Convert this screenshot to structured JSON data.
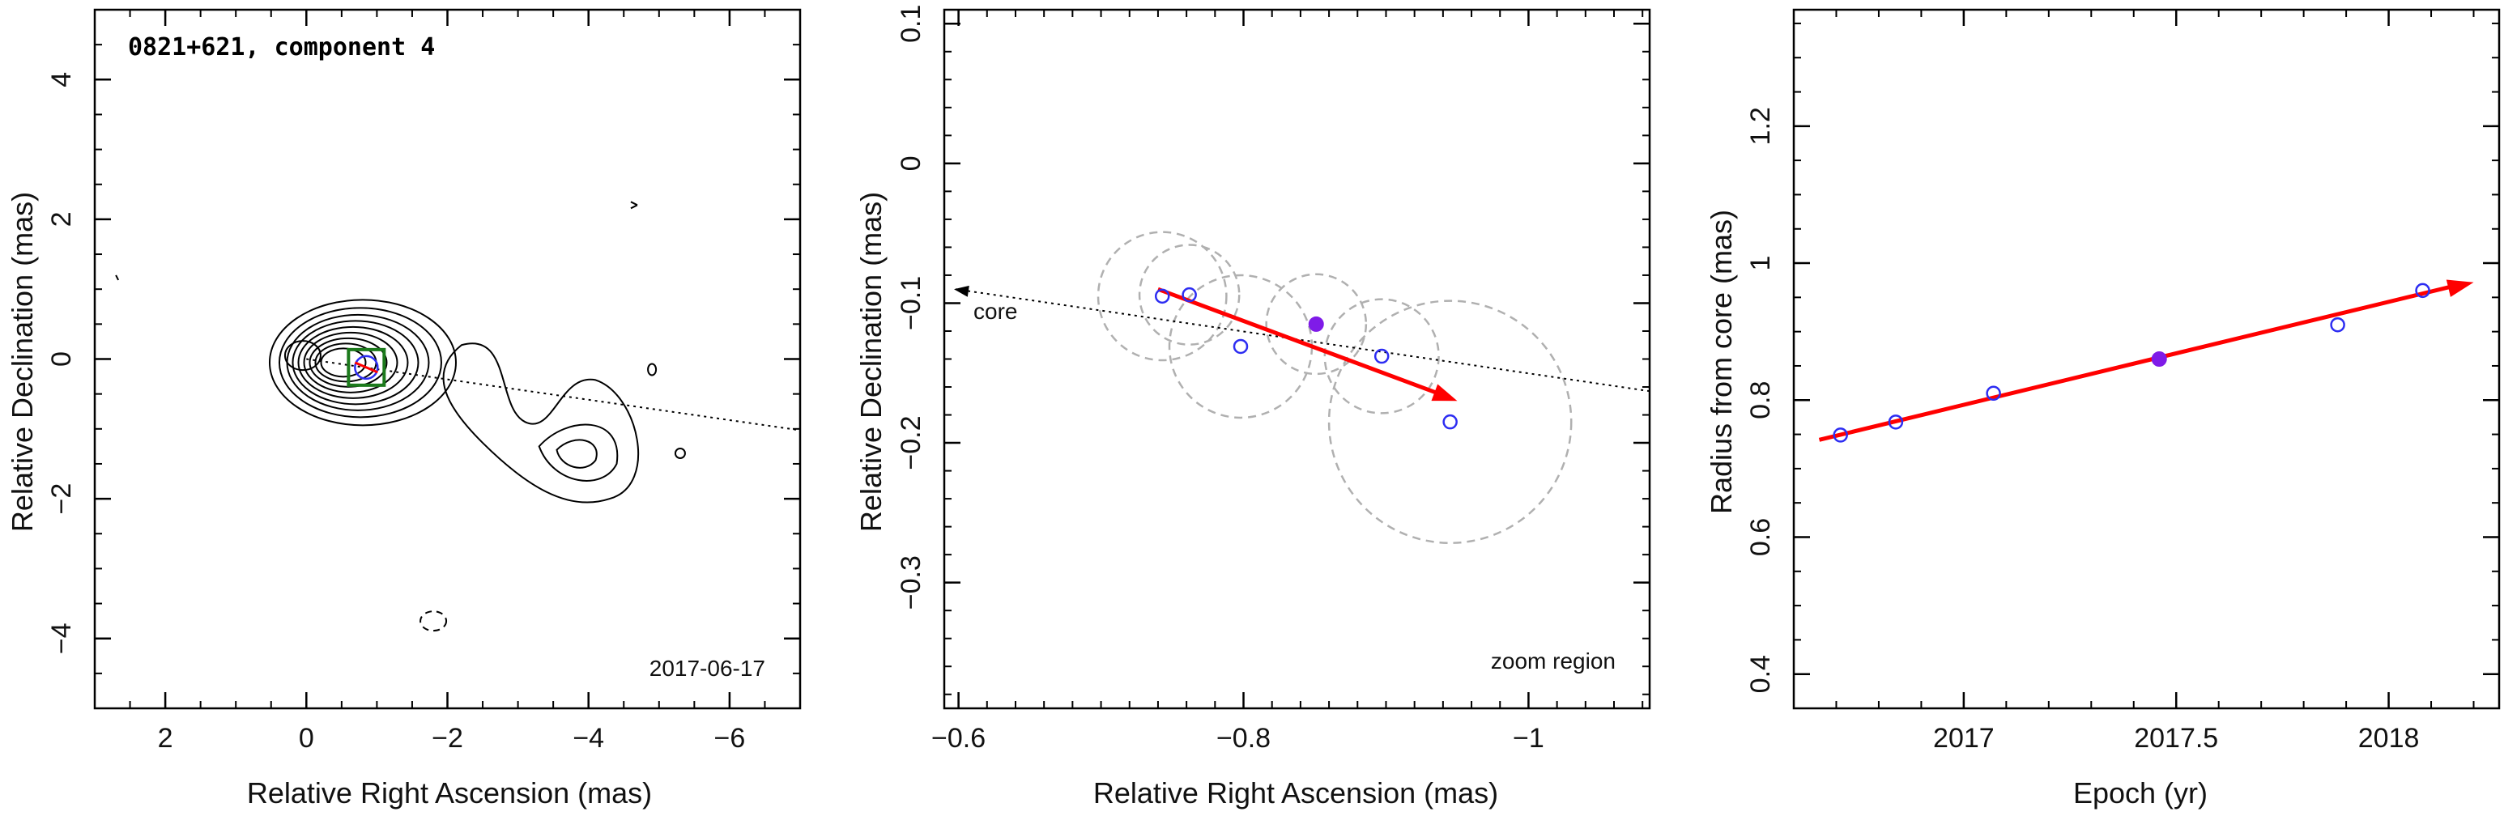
{
  "colors": {
    "axis": "#000000",
    "arrow": "#ff0000",
    "marker_open": "#2d2df2",
    "marker_filled": "#7f1be8",
    "circle": "#b0b0b0",
    "box": "#1c7a1c"
  },
  "chart_data": [
    {
      "type": "contour",
      "title": "0821+621, component 4",
      "date": "2017-06-17",
      "xlabel": "Relative Right Ascension (mas)",
      "ylabel": "Relative Declination (mas)",
      "xlim": [
        3,
        -7
      ],
      "ylim": [
        -5,
        5
      ],
      "xticks": [
        2,
        0,
        -2,
        -4,
        -6
      ],
      "yticks": [
        -4,
        -2,
        0,
        2,
        4
      ],
      "xtick_labels": [
        "2",
        "0",
        "−2",
        "−4",
        "−6"
      ],
      "ytick_labels": [
        "−4",
        "−2",
        "0",
        "2",
        "4"
      ],
      "component_position": [
        -0.85,
        -0.12
      ],
      "trajectory_line": {
        "from": [
          0,
          0
        ],
        "to": [
          -7,
          -1.02
        ]
      }
    },
    {
      "type": "scatter",
      "annotation_core": "core",
      "annotation_zoom": "zoom region",
      "xlabel": "Relative Right Ascension (mas)",
      "ylabel": "Relative Declination (mas)",
      "xlim": [
        -0.59,
        -1.085
      ],
      "ylim": [
        -0.39,
        0.11
      ],
      "xticks": [
        -0.6,
        -0.8,
        -1
      ],
      "yticks": [
        -0.3,
        -0.2,
        -0.1,
        0,
        0.1
      ],
      "xtick_labels": [
        "−0.6",
        "−0.8",
        "−1"
      ],
      "ytick_labels": [
        "−0.3",
        "−0.2",
        "−0.1",
        "0",
        "0.1"
      ],
      "points": [
        {
          "x": -0.743,
          "y": -0.095,
          "r": 0.045,
          "filled": false
        },
        {
          "x": -0.762,
          "y": -0.094,
          "r": 0.035,
          "filled": false
        },
        {
          "x": -0.798,
          "y": -0.131,
          "r": 0.05,
          "filled": false
        },
        {
          "x": -0.851,
          "y": -0.115,
          "r": 0.035,
          "filled": true
        },
        {
          "x": -0.897,
          "y": -0.138,
          "r": 0.04,
          "filled": false
        },
        {
          "x": -0.945,
          "y": -0.185,
          "r": 0.085,
          "filled": false
        }
      ],
      "fit_arrow": {
        "from": [
          -0.74,
          -0.09
        ],
        "to": [
          -0.95,
          -0.17
        ]
      },
      "core_line": {
        "from": [
          -1.085,
          -0.163
        ],
        "to": [
          -0.59,
          -0.09
        ]
      }
    },
    {
      "type": "scatter",
      "xlabel": "Epoch (yr)",
      "ylabel": "Radius from core (mas)",
      "xlim": [
        2016.6,
        2018.26
      ],
      "ylim": [
        0.35,
        1.37
      ],
      "xticks": [
        2017,
        2017.5,
        2018
      ],
      "yticks": [
        0.4,
        0.6,
        0.8,
        1,
        1.2
      ],
      "xtick_labels": [
        "2017",
        "2017.5",
        "2018"
      ],
      "ytick_labels": [
        "0.4",
        "0.6",
        "0.8",
        "1",
        "1.2"
      ],
      "points": [
        {
          "x": 2016.71,
          "y": 0.749,
          "filled": false
        },
        {
          "x": 2016.84,
          "y": 0.768,
          "filled": false
        },
        {
          "x": 2017.07,
          "y": 0.81,
          "filled": false
        },
        {
          "x": 2017.46,
          "y": 0.86,
          "filled": true
        },
        {
          "x": 2017.88,
          "y": 0.91,
          "filled": false
        },
        {
          "x": 2018.08,
          "y": 0.96,
          "filled": false
        }
      ],
      "fit_arrow": {
        "from": [
          2016.66,
          0.742
        ],
        "to": [
          2018.2,
          0.972
        ]
      }
    }
  ]
}
